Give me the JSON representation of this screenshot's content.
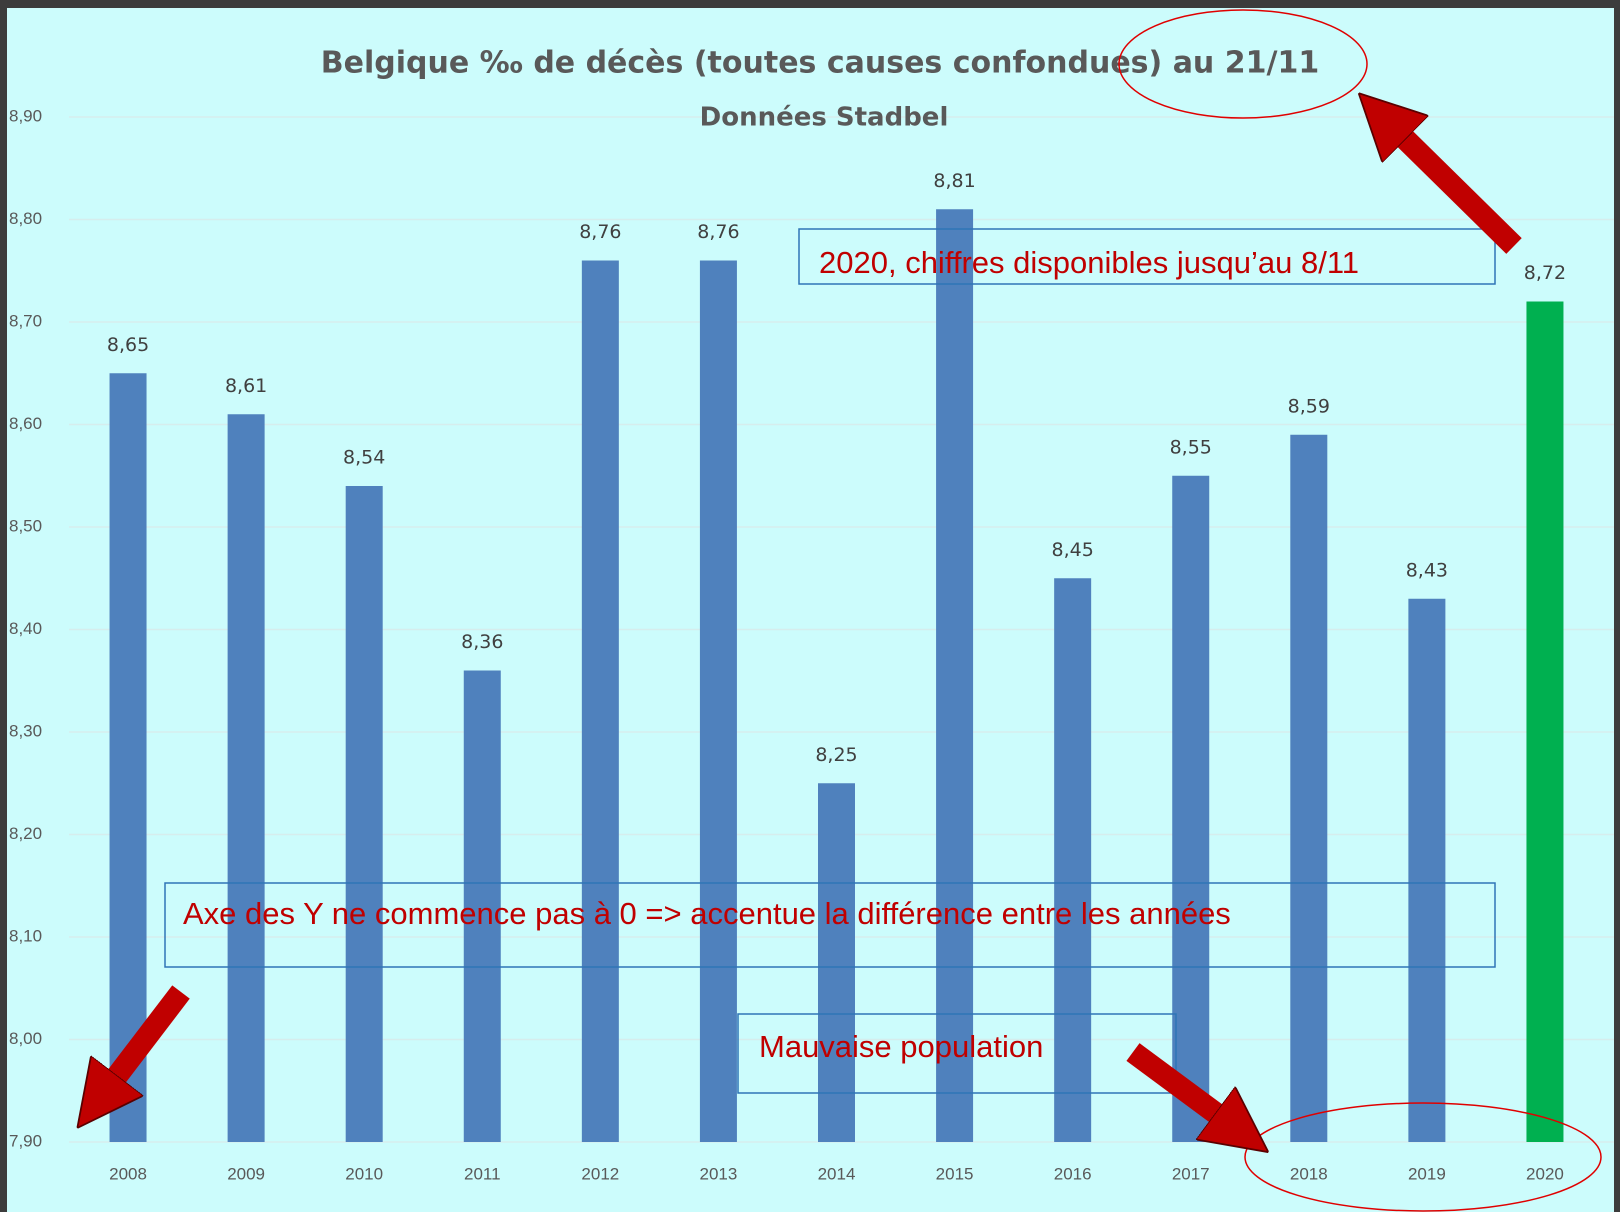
{
  "chart_data": {
    "type": "bar",
    "title": "Belgique ‰ de décès (toutes causes confondues) au 21/11",
    "subtitle": "Données Stadbel",
    "categories": [
      "2008",
      "2009",
      "2010",
      "2011",
      "2012",
      "2013",
      "2014",
      "2015",
      "2016",
      "2017",
      "2018",
      "2019",
      "2020"
    ],
    "values": [
      8.65,
      8.61,
      8.54,
      8.36,
      8.76,
      8.76,
      8.25,
      8.81,
      8.45,
      8.55,
      8.59,
      8.43,
      8.72
    ],
    "value_labels": [
      "8,65",
      "8,61",
      "8,54",
      "8,36",
      "8,76",
      "8,76",
      "8,25",
      "8,81",
      "8,45",
      "8,55",
      "8,59",
      "8,43",
      "8,72"
    ],
    "colors": [
      "#4f81bd",
      "#4f81bd",
      "#4f81bd",
      "#4f81bd",
      "#4f81bd",
      "#4f81bd",
      "#4f81bd",
      "#4f81bd",
      "#4f81bd",
      "#4f81bd",
      "#4f81bd",
      "#4f81bd",
      "#00b050"
    ],
    "ylim": [
      7.9,
      8.9
    ],
    "yticks": [
      {
        "value": 7.9,
        "label": "7,90"
      },
      {
        "value": 8.0,
        "label": "8,00"
      },
      {
        "value": 8.1,
        "label": "8,10"
      },
      {
        "value": 8.2,
        "label": "8,20"
      },
      {
        "value": 8.3,
        "label": "8,30"
      },
      {
        "value": 8.4,
        "label": "8,40"
      },
      {
        "value": 8.5,
        "label": "8,50"
      },
      {
        "value": 8.6,
        "label": "8,60"
      },
      {
        "value": 8.7,
        "label": "8,70"
      },
      {
        "value": 8.8,
        "label": "8,80"
      },
      {
        "value": 8.9,
        "label": "8,90"
      }
    ],
    "grid": true,
    "annotations": [
      "2020, chiffres disponibles jusqu’au 8/11",
      "Axe des Y ne commence pas à 0 => accentue la différence entre les années",
      "Mauvaise population"
    ]
  }
}
